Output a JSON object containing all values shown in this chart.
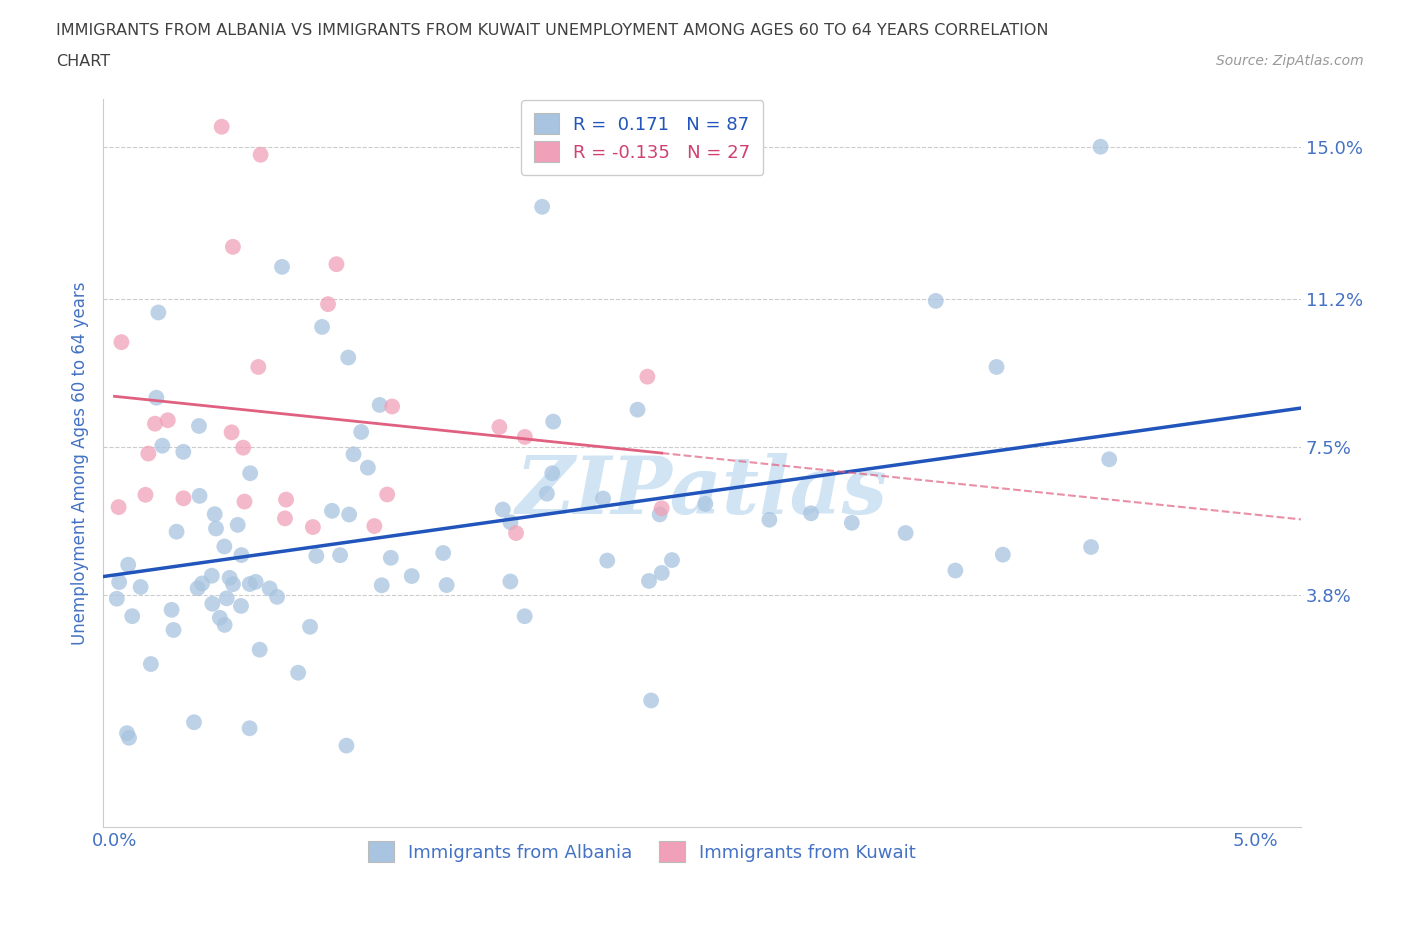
{
  "title_line1": "IMMIGRANTS FROM ALBANIA VS IMMIGRANTS FROM KUWAIT UNEMPLOYMENT AMONG AGES 60 TO 64 YEARS CORRELATION",
  "title_line2": "CHART",
  "source_text": "Source: ZipAtlas.com",
  "ylabel": "Unemployment Among Ages 60 to 64 years",
  "x_ticks": [
    0.0,
    0.01,
    0.02,
    0.03,
    0.04,
    0.05
  ],
  "x_tick_labels": [
    "0.0%",
    "",
    "",
    "",
    "",
    "5.0%"
  ],
  "y_ticks": [
    0.038,
    0.075,
    0.112,
    0.15
  ],
  "y_tick_labels": [
    "3.8%",
    "7.5%",
    "11.2%",
    "15.0%"
  ],
  "xlim": [
    -0.0005,
    0.052
  ],
  "ylim": [
    -0.02,
    0.162
  ],
  "albania_R": 0.171,
  "albania_N": 87,
  "kuwait_R": -0.135,
  "kuwait_N": 27,
  "albania_color": "#a8c4e0",
  "kuwait_color": "#f0a0b8",
  "albania_line_color": "#2255bb",
  "kuwait_line_color": "#e06080",
  "watermark_color": "#d0e4f4",
  "legend_label_albania": "Immigrants from Albania",
  "legend_label_kuwait": "Immigrants from Kuwait",
  "background_color": "#ffffff",
  "grid_color": "#cccccc",
  "title_color": "#404040",
  "axis_label_color": "#4472c4",
  "tick_label_color": "#4472c4"
}
